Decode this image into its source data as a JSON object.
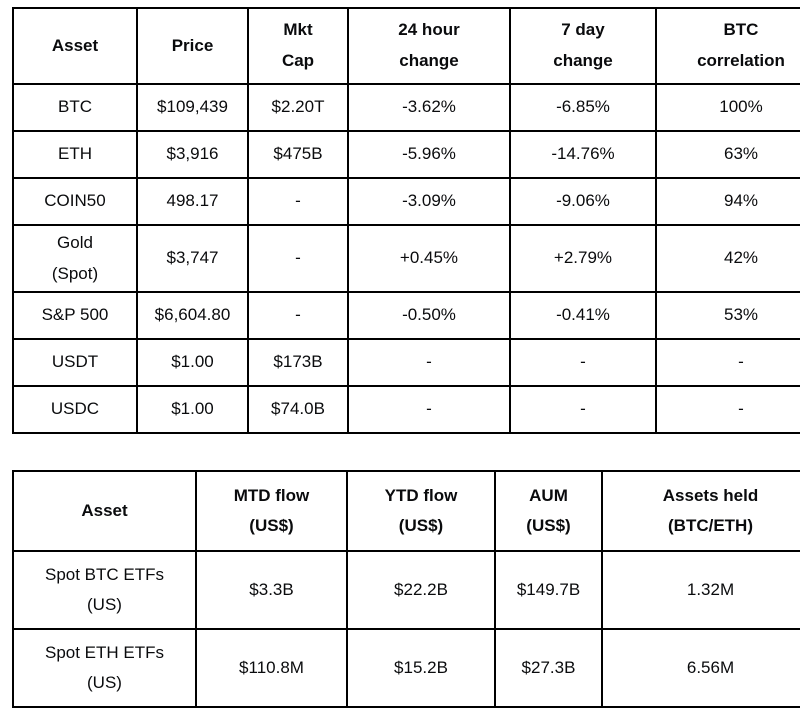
{
  "colors": {
    "background": "#ffffff",
    "border": "#000000",
    "text": "#0a0b0d"
  },
  "chart_data": [
    {
      "type": "table",
      "name": "crypto-market-overview",
      "columns": [
        "Asset",
        "Price",
        "Mkt\nCap",
        "24 hour\nchange",
        "7 day\nchange",
        "BTC\ncorrelation"
      ],
      "rows": [
        [
          "BTC",
          "$109,439",
          "$2.20T",
          "-3.62%",
          "-6.85%",
          "100%"
        ],
        [
          "ETH",
          "$3,916",
          "$475B",
          "-5.96%",
          "-14.76%",
          "63%"
        ],
        [
          "COIN50",
          "498.17",
          "-",
          "-3.09%",
          "-9.06%",
          "94%"
        ],
        [
          "Gold\n(Spot)",
          "$3,747",
          "-",
          "+0.45%",
          "+2.79%",
          "42%"
        ],
        [
          "S&P 500",
          "$6,604.80",
          "-",
          "-0.50%",
          "-0.41%",
          "53%"
        ],
        [
          "USDT",
          "$1.00",
          "$173B",
          "-",
          "-",
          "-"
        ],
        [
          "USDC",
          "$1.00",
          "$74.0B",
          "-",
          "-",
          "-"
        ]
      ]
    },
    {
      "type": "table",
      "name": "spot-etf-flows",
      "columns": [
        "Asset",
        "MTD flow\n(US$)",
        "YTD flow\n(US$)",
        "AUM\n(US$)",
        "Assets held\n(BTC/ETH)"
      ],
      "rows": [
        [
          "Spot BTC ETFs\n(US)",
          "$3.3B",
          "$22.2B",
          "$149.7B",
          "1.32M"
        ],
        [
          "Spot ETH ETFs\n(US)",
          "$110.8M",
          "$15.2B",
          "$27.3B",
          "6.56M"
        ]
      ]
    }
  ]
}
